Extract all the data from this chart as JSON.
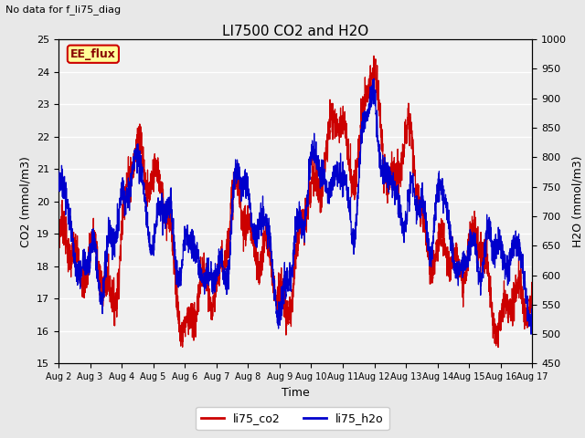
{
  "title": "LI7500 CO2 and H2O",
  "subtitle": "No data for f_li75_diag",
  "xlabel": "Time",
  "ylabel_left": "CO2 (mmol/m3)",
  "ylabel_right": "H2O (mmol/m3)",
  "ylim_left": [
    15.0,
    25.0
  ],
  "ylim_right": [
    450,
    1000
  ],
  "xtick_labels": [
    "Aug 2",
    "Aug 3",
    "Aug 4",
    "Aug 5",
    "Aug 6",
    "Aug 7",
    "Aug 8",
    "Aug 9",
    "Aug 10",
    "Aug 11",
    "Aug 12",
    "Aug 13",
    "Aug 14",
    "Aug 15",
    "Aug 16",
    "Aug 17"
  ],
  "color_co2": "#cc0000",
  "color_h2o": "#0000cc",
  "legend_label_co2": "li75_co2",
  "legend_label_h2o": "li75_h2o",
  "ee_flux_box_facecolor": "#ffff99",
  "ee_flux_box_edgecolor": "#cc0000",
  "ee_flux_text": "EE_flux",
  "background_color": "#e8e8e8",
  "plot_background": "#f0f0f0",
  "grid_color": "#ffffff",
  "figsize": [
    6.4,
    4.8
  ],
  "dpi": 100
}
